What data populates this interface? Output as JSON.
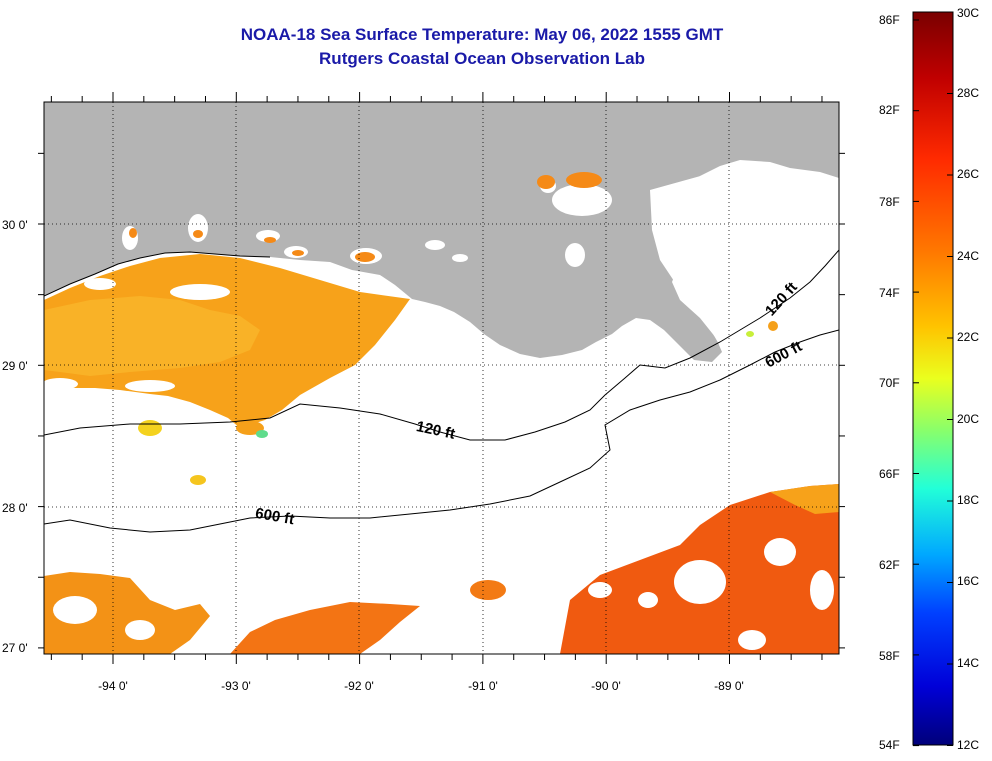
{
  "header": {
    "title": "NOAA-18 Sea Surface Temperature:  May 06, 2022 1555 GMT",
    "subtitle": "Rutgers Coastal Ocean Observation Lab"
  },
  "map": {
    "lat_labels": [
      "30 0'",
      "29 0'",
      "28 0'",
      "27 0'"
    ],
    "lon_labels": [
      "-94 0'",
      "-93 0'",
      "-92 0'",
      "-91 0'",
      "-90 0'",
      "-89 0'"
    ],
    "contours": [
      {
        "label": "120 ft"
      },
      {
        "label": "600 ft"
      },
      {
        "label": "120 ft"
      },
      {
        "label": "600 ft"
      }
    ],
    "colors": {
      "land": "#b4b4b4",
      "ocean_nodata": "#ffffff",
      "grid": "#000000"
    }
  },
  "colorbar": {
    "fahrenheit_labels": [
      "86F",
      "82F",
      "78F",
      "74F",
      "70F",
      "66F",
      "62F",
      "58F",
      "54F"
    ],
    "celsius_labels": [
      "30C",
      "28C",
      "26C",
      "24C",
      "22C",
      "20C",
      "18C",
      "16C",
      "14C",
      "12C"
    ],
    "gradient": [
      "#7a0000",
      "#c00000",
      "#ff2a00",
      "#ff7a00",
      "#ffc400",
      "#eaff1e",
      "#8aff6a",
      "#22ffd8",
      "#00a8ff",
      "#0040ff",
      "#0000d8",
      "#00007a"
    ]
  }
}
